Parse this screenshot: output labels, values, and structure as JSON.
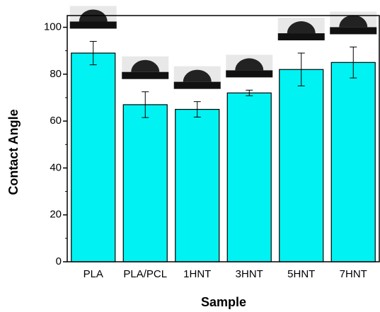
{
  "chart_data": {
    "type": "bar",
    "x_label": "Sample",
    "y_label": "Contact Angle",
    "categories": [
      "PLA",
      "PLA/PCL",
      "1HNT",
      "3HNT",
      "5HNT",
      "7HNT"
    ],
    "values": [
      89,
      67,
      65,
      72,
      82,
      85
    ],
    "errors": [
      5,
      5.5,
      3.3,
      1.2,
      7,
      6.6
    ],
    "color": "#00f2f2",
    "ylim": [
      0,
      105
    ],
    "yticks": [
      0,
      20,
      40,
      60,
      80,
      100
    ]
  }
}
